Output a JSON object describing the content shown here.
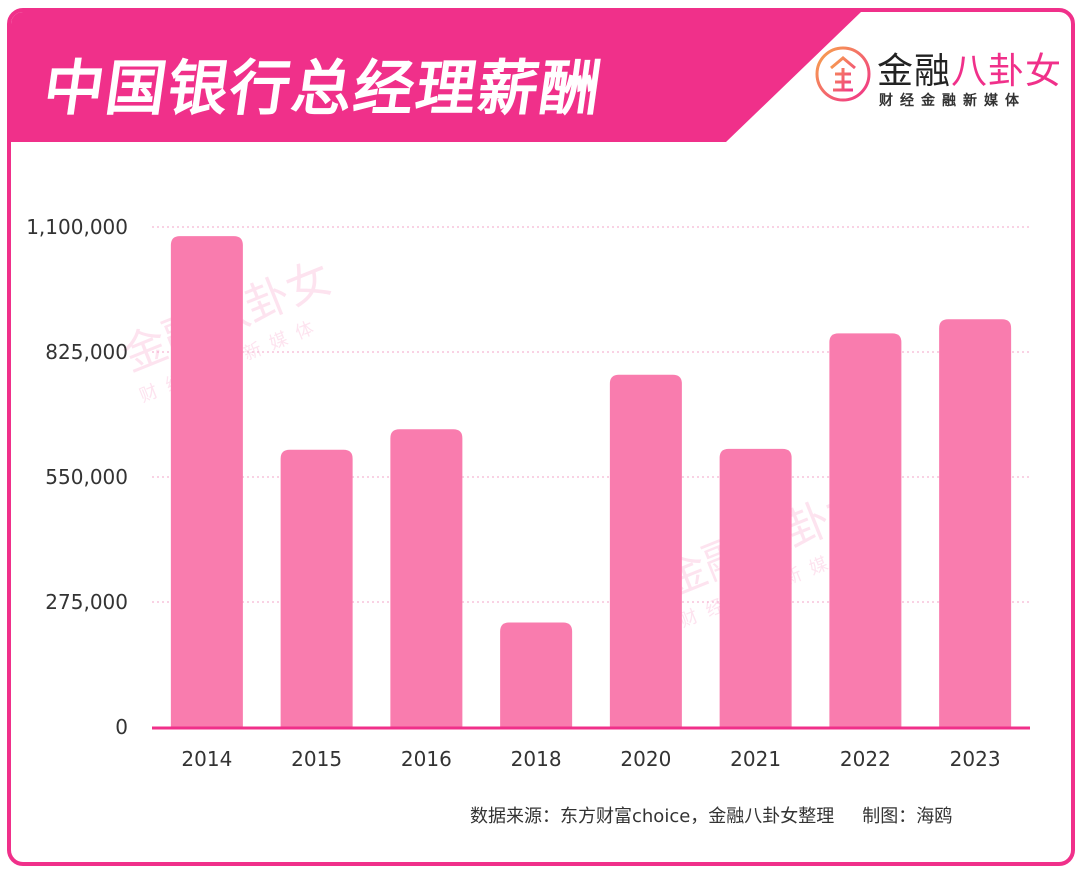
{
  "header": {
    "title": "中国银行总经理薪酬",
    "banner_color": "#f0308a"
  },
  "logo": {
    "icon": "jin-circle-logo-icon",
    "name_black": "金融",
    "name_pink": "八卦女",
    "subtitle": "财经金融新媒体"
  },
  "watermark": {
    "name": "金融八卦女",
    "subtitle": "财经金融新媒体"
  },
  "chart_data": {
    "type": "bar",
    "title": "中国银行总经理薪酬",
    "categories": [
      "2014",
      "2015",
      "2016",
      "2018",
      "2020",
      "2021",
      "2022",
      "2023"
    ],
    "values": [
      1080000,
      610000,
      655000,
      230000,
      775000,
      612000,
      866000,
      897000
    ],
    "yticks": [
      "0",
      "275,000",
      "550,000",
      "825,000",
      "1,100,000"
    ],
    "ylim": [
      0,
      1100000
    ],
    "bar_color": "#f97cae",
    "grid": "dotted horizontal",
    "xlabel": "",
    "ylabel": ""
  },
  "footer": {
    "source": "数据来源：东方财富choice，金融八卦女整理",
    "author": "制图：海鸥"
  }
}
